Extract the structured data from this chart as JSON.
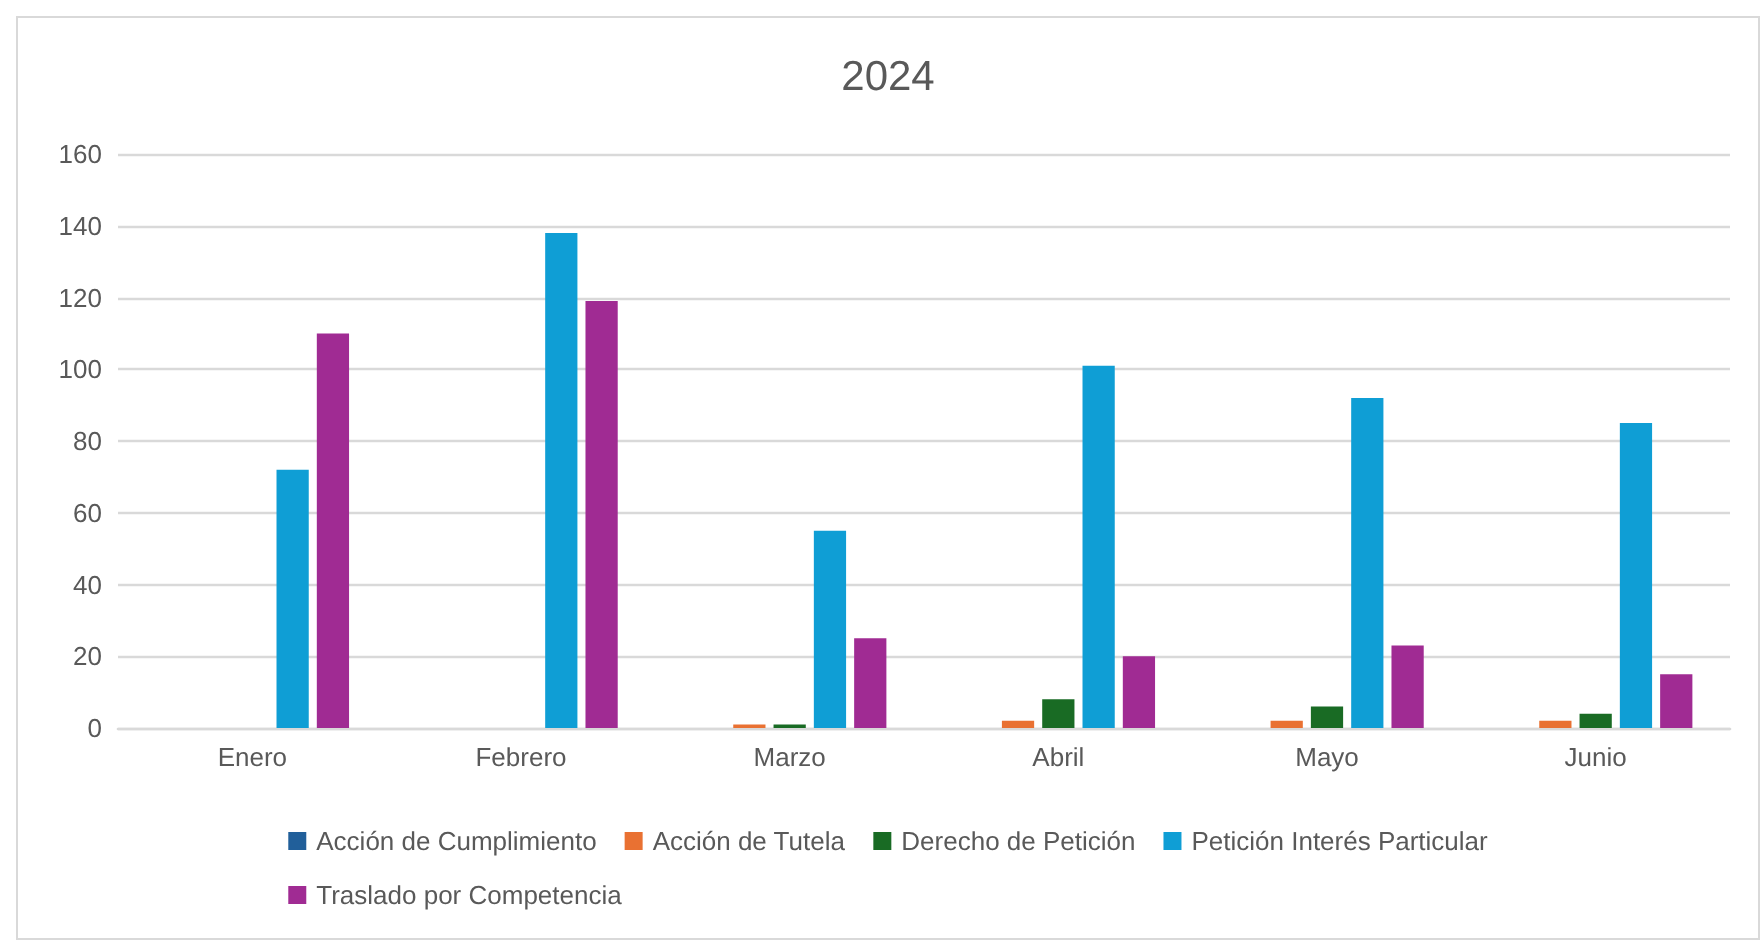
{
  "chart_data": {
    "type": "bar",
    "title": "2024",
    "categories": [
      "Enero",
      "Febrero",
      "Marzo",
      "Abril",
      "Mayo",
      "Junio"
    ],
    "series": [
      {
        "name": "Acción de Cumplimiento",
        "color": "#215f9a",
        "values": [
          0,
          0,
          0,
          0,
          0,
          0
        ]
      },
      {
        "name": "Acción de Tutela",
        "color": "#e97132",
        "values": [
          0,
          0,
          1,
          2,
          2,
          2
        ]
      },
      {
        "name": "Derecho de Petición",
        "color": "#196b24",
        "values": [
          0,
          0,
          1,
          8,
          6,
          4
        ]
      },
      {
        "name": "Petición Interés Particular",
        "color": "#0f9ed5",
        "values": [
          72,
          138,
          55,
          101,
          92,
          85
        ]
      },
      {
        "name": "Traslado por Competencia",
        "color": "#a02b93",
        "values": [
          110,
          119,
          25,
          20,
          23,
          15
        ]
      }
    ],
    "ylim": [
      0,
      160
    ],
    "yticks": [
      0,
      20,
      40,
      60,
      80,
      100,
      120,
      140,
      160
    ],
    "grid": "y",
    "legend": "bottom"
  }
}
